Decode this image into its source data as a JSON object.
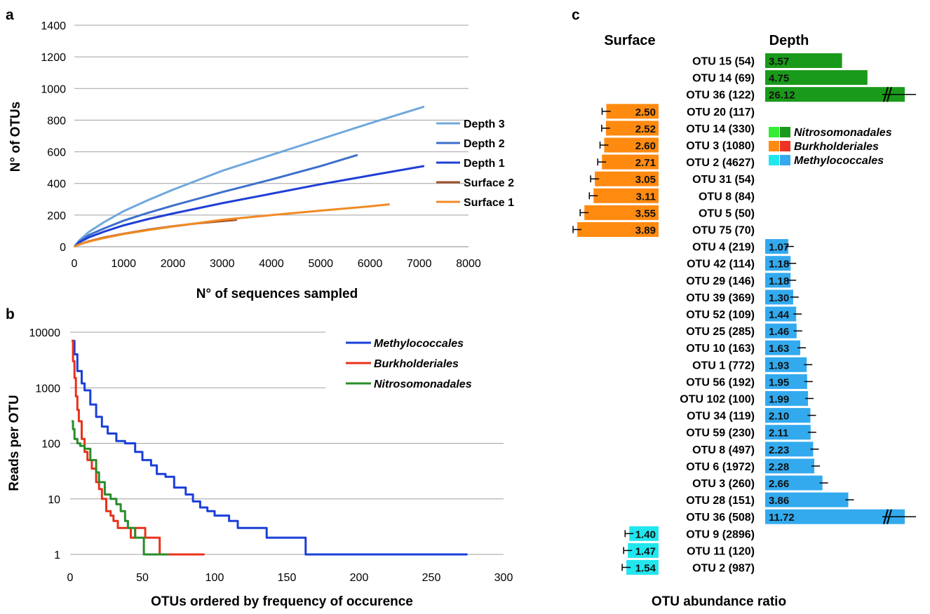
{
  "panels": {
    "a_label": "a",
    "b_label": "b",
    "c_label": "c"
  },
  "chart_data": [
    {
      "id": "a",
      "type": "line",
      "xlabel": "N° of sequences sampled",
      "ylabel": "N° of OTUs",
      "xlim": [
        0,
        8000
      ],
      "ylim": [
        0,
        1400
      ],
      "xticks": [
        "0",
        "1000",
        "2000",
        "3000",
        "4000",
        "5000",
        "6000",
        "7000",
        "8000"
      ],
      "yticks": [
        "0",
        "200",
        "400",
        "600",
        "800",
        "1000",
        "1200",
        "1400"
      ],
      "grid": true,
      "legend_position": "right",
      "series": [
        {
          "name": "Depth 3",
          "color": "#6fa8dc",
          "x": [
            0,
            100,
            300,
            600,
            1000,
            1500,
            2000,
            3000,
            4000,
            5000,
            6000,
            7100
          ],
          "y": [
            0,
            40,
            95,
            155,
            225,
            295,
            360,
            480,
            580,
            680,
            780,
            885
          ]
        },
        {
          "name": "Depth 2",
          "color": "#3d6fcc",
          "x": [
            0,
            100,
            300,
            600,
            1000,
            1500,
            2000,
            3000,
            4000,
            5000,
            5750
          ],
          "y": [
            0,
            32,
            75,
            115,
            165,
            215,
            260,
            345,
            425,
            510,
            580
          ]
        },
        {
          "name": "Depth 1",
          "color": "#1f3fd6",
          "x": [
            0,
            100,
            300,
            600,
            1000,
            1500,
            2000,
            3000,
            4000,
            5000,
            6000,
            7100
          ],
          "y": [
            0,
            28,
            60,
            95,
            135,
            175,
            210,
            275,
            335,
            395,
            450,
            510
          ]
        },
        {
          "name": "Surface 2",
          "color": "#a0522d",
          "x": [
            0,
            100,
            300,
            600,
            1000,
            1500,
            2000,
            2500,
            3300
          ],
          "y": [
            0,
            15,
            35,
            58,
            82,
            108,
            130,
            148,
            170
          ]
        },
        {
          "name": "Surface 1",
          "color": "#f08a24",
          "x": [
            0,
            100,
            300,
            600,
            1000,
            1500,
            2000,
            3000,
            4000,
            5000,
            6000,
            6400
          ],
          "y": [
            0,
            14,
            33,
            55,
            80,
            105,
            128,
            170,
            200,
            228,
            255,
            268
          ]
        }
      ]
    },
    {
      "id": "b",
      "type": "line",
      "xlabel": "OTUs ordered by frequency of occurence",
      "ylabel": "Reads per OTU",
      "xlim": [
        0,
        300
      ],
      "ylim": [
        1,
        10000
      ],
      "yscale": "log",
      "xticks": [
        "0",
        "50",
        "100",
        "150",
        "200",
        "250",
        "300"
      ],
      "yticks": [
        "1",
        "10",
        "100",
        "1000",
        "10000"
      ],
      "grid": true,
      "legend_position": "top-right",
      "series": [
        {
          "name": "Methylococcales",
          "color": "#1a3fd9",
          "x": [
            1,
            3,
            5,
            8,
            10,
            14,
            18,
            22,
            26,
            32,
            38,
            45,
            50,
            56,
            60,
            66,
            72,
            80,
            85,
            90,
            95,
            100,
            105,
            110,
            116,
            122,
            136,
            140,
            155,
            162,
            163,
            180,
            200,
            240,
            275
          ],
          "y": [
            7000,
            4000,
            2000,
            1200,
            900,
            500,
            300,
            200,
            150,
            110,
            100,
            70,
            50,
            40,
            28,
            25,
            16,
            12,
            9,
            7,
            6,
            5,
            5,
            4,
            3,
            3,
            2,
            2,
            2,
            2,
            1,
            1,
            1,
            1,
            1
          ]
        },
        {
          "name": "Burkholderiales",
          "color": "#e8321c",
          "x": [
            1,
            2,
            3,
            4,
            5,
            6,
            8,
            10,
            12,
            15,
            18,
            20,
            22,
            25,
            28,
            30,
            33,
            36,
            40,
            42,
            45,
            50,
            52,
            55,
            58,
            60,
            62,
            70,
            80,
            93
          ],
          "y": [
            7000,
            3000,
            1500,
            700,
            400,
            250,
            120,
            70,
            50,
            35,
            20,
            15,
            10,
            6,
            5,
            4,
            3,
            3,
            3,
            2,
            3,
            3,
            2,
            2,
            2,
            2,
            1,
            1,
            1,
            1
          ]
        },
        {
          "name": "Nitrosomonadales",
          "color": "#2a8c2a",
          "x": [
            1,
            2,
            3,
            5,
            7,
            10,
            14,
            18,
            20,
            24,
            28,
            32,
            35,
            38,
            40,
            42,
            45,
            48,
            50,
            51,
            55,
            60,
            68
          ],
          "y": [
            250,
            180,
            120,
            100,
            90,
            80,
            50,
            30,
            20,
            12,
            10,
            8,
            6,
            4,
            3,
            3,
            2,
            2,
            2,
            1,
            1,
            1,
            1
          ]
        }
      ]
    },
    {
      "id": "c",
      "type": "bar",
      "orientation": "horizontal",
      "xlabel": "OTU abundance ratio",
      "left_header": "Surface",
      "right_header": "Depth",
      "legend_position": "right",
      "legend": [
        {
          "name": "Nitrosomonadales",
          "colors": [
            "#33ee33",
            "#1a9a1a"
          ]
        },
        {
          "name": "Burkholderiales",
          "colors": [
            "#ff8a10",
            "#ee3322"
          ]
        },
        {
          "name": "Methylococcales",
          "colors": [
            "#22e6ee",
            "#33aaee"
          ]
        }
      ],
      "rows": [
        {
          "label": "OTU 15 (54)",
          "value": 3.57,
          "side": "Depth",
          "group": "Nitrosomonadales",
          "value_label": "3.57"
        },
        {
          "label": "OTU 14 (69)",
          "value": 4.75,
          "side": "Depth",
          "group": "Nitrosomonadales",
          "value_label": "4.75"
        },
        {
          "label": "OTU 36 (122)",
          "value": 26.12,
          "side": "Depth",
          "group": "Nitrosomonadales",
          "value_label": "26.12",
          "axis_break": true
        },
        {
          "label": "OTU 20 (117)",
          "value": 2.5,
          "side": "Surface",
          "group": "Burkholderiales",
          "value_label": "2.50"
        },
        {
          "label": "OTU 14 (330)",
          "value": 2.52,
          "side": "Surface",
          "group": "Burkholderiales",
          "value_label": "2.52"
        },
        {
          "label": "OTU 3 (1080)",
          "value": 2.6,
          "side": "Surface",
          "group": "Burkholderiales",
          "value_label": "2.60"
        },
        {
          "label": "OTU 2 (4627)",
          "value": 2.71,
          "side": "Surface",
          "group": "Burkholderiales",
          "value_label": "2.71"
        },
        {
          "label": "OTU 31 (54)",
          "value": 3.05,
          "side": "Surface",
          "group": "Burkholderiales",
          "value_label": "3.05"
        },
        {
          "label": "OTU 8 (84)",
          "value": 3.11,
          "side": "Surface",
          "group": "Burkholderiales",
          "value_label": "3.11"
        },
        {
          "label": "OTU 5 (50)",
          "value": 3.55,
          "side": "Surface",
          "group": "Burkholderiales",
          "value_label": "3.55"
        },
        {
          "label": "OTU 75 (70)",
          "value": 3.89,
          "side": "Surface",
          "group": "Burkholderiales",
          "value_label": "3.89"
        },
        {
          "label": "OTU 4 (219)",
          "value": 1.07,
          "side": "Depth",
          "group": "Methylococcales",
          "value_label": "1.07"
        },
        {
          "label": "OTU 42 (114)",
          "value": 1.18,
          "side": "Depth",
          "group": "Methylococcales",
          "value_label": "1.18"
        },
        {
          "label": "OTU 29 (146)",
          "value": 1.18,
          "side": "Depth",
          "group": "Methylococcales",
          "value_label": "1.18"
        },
        {
          "label": "OTU 39 (369)",
          "value": 1.3,
          "side": "Depth",
          "group": "Methylococcales",
          "value_label": "1.30"
        },
        {
          "label": "OTU 52 (109)",
          "value": 1.44,
          "side": "Depth",
          "group": "Methylococcales",
          "value_label": "1.44"
        },
        {
          "label": "OTU 25 (285)",
          "value": 1.46,
          "side": "Depth",
          "group": "Methylococcales",
          "value_label": "1.46"
        },
        {
          "label": "OTU 10 (163)",
          "value": 1.63,
          "side": "Depth",
          "group": "Methylococcales",
          "value_label": "1.63"
        },
        {
          "label": "OTU 1 (772)",
          "value": 1.93,
          "side": "Depth",
          "group": "Methylococcales",
          "value_label": "1.93"
        },
        {
          "label": "OTU 56 (192)",
          "value": 1.95,
          "side": "Depth",
          "group": "Methylococcales",
          "value_label": "1.95"
        },
        {
          "label": "OTU 102 (100)",
          "value": 1.99,
          "side": "Depth",
          "group": "Methylococcales",
          "value_label": "1.99"
        },
        {
          "label": "OTU 34 (119)",
          "value": 2.1,
          "side": "Depth",
          "group": "Methylococcales",
          "value_label": "2.10"
        },
        {
          "label": "OTU 59 (230)",
          "value": 2.11,
          "side": "Depth",
          "group": "Methylococcales",
          "value_label": "2.11"
        },
        {
          "label": "OTU 8 (497)",
          "value": 2.23,
          "side": "Depth",
          "group": "Methylococcales",
          "value_label": "2.23"
        },
        {
          "label": "OTU 6 (1972)",
          "value": 2.28,
          "side": "Depth",
          "group": "Methylococcales",
          "value_label": "2.28"
        },
        {
          "label": "OTU 3 (260)",
          "value": 2.66,
          "side": "Depth",
          "group": "Methylococcales",
          "value_label": "2.66"
        },
        {
          "label": "OTU 28 (151)",
          "value": 3.86,
          "side": "Depth",
          "group": "Methylococcales",
          "value_label": "3.86"
        },
        {
          "label": "OTU 36 (508)",
          "value": 11.72,
          "side": "Depth",
          "group": "Methylococcales",
          "value_label": "11.72",
          "axis_break": true
        },
        {
          "label": "OTU 9 (2896)",
          "value": 1.4,
          "side": "Surface",
          "group": "Methylococcales",
          "value_label": "1.40"
        },
        {
          "label": "OTU 11 (120)",
          "value": 1.47,
          "side": "Surface",
          "group": "Methylococcales",
          "value_label": "1.47"
        },
        {
          "label": "OTU 2 (987)",
          "value": 1.54,
          "side": "Surface",
          "group": "Methylococcales",
          "value_label": "1.54"
        }
      ]
    }
  ]
}
